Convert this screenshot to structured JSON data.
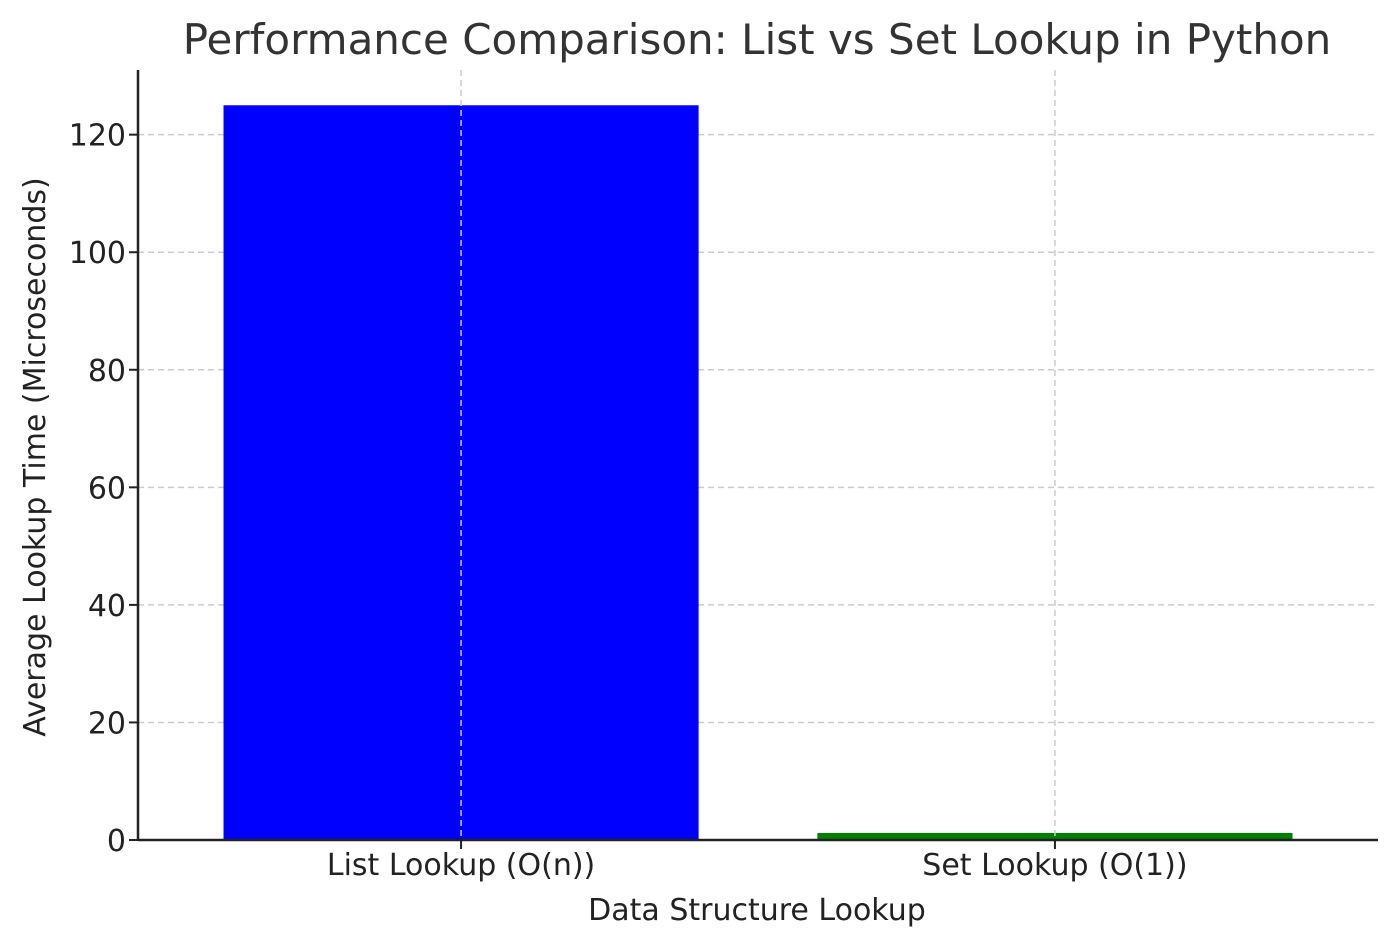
{
  "chart_data": {
    "type": "bar",
    "title": "Performance Comparison: List vs Set Lookup in Python",
    "xlabel": "Data Structure Lookup",
    "ylabel": "Average Lookup Time (Microseconds)",
    "categories": [
      "List Lookup (O(n))",
      "Set Lookup (O(1))"
    ],
    "values": [
      125,
      1.2
    ],
    "colors": [
      "#0000ff",
      "#008000"
    ],
    "ylim": [
      0,
      131
    ],
    "yticks": [
      0,
      20,
      40,
      60,
      80,
      100,
      120
    ],
    "grid": true
  }
}
